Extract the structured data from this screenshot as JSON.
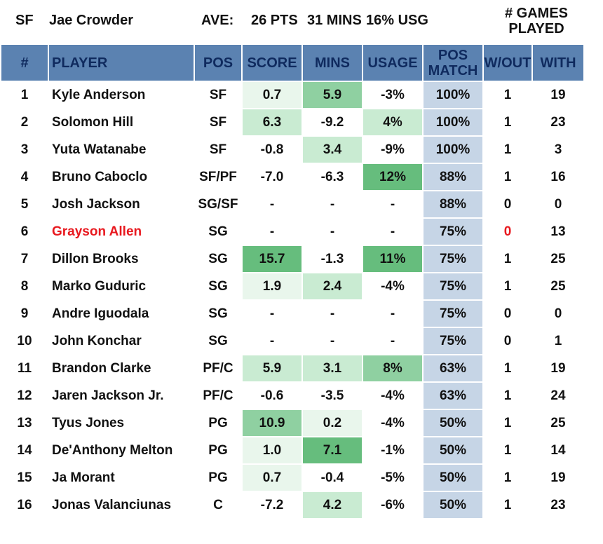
{
  "header": {
    "position": "SF",
    "player": "Jae Crowder",
    "ave_label": "AVE:",
    "pts": "26 PTS",
    "mins": "31 MINS",
    "usg": "16% USG",
    "games_line1": "# GAMES",
    "games_line2": "PLAYED"
  },
  "columns": {
    "num": "#",
    "player": "PLAYER",
    "pos": "POS",
    "score": "SCORE",
    "mins": "MINS",
    "usage": "USAGE",
    "pos_match_line1": "POS",
    "pos_match_line2": "MATCH",
    "without": "W/OUT",
    "with": "WITH"
  },
  "colors": {
    "header_bg": "#5b82b1",
    "header_text": "#0f2a5e",
    "pos_match_bg": "#c6d5e6",
    "highlight_name": "#e8191f",
    "green_scale": [
      "#ffffff",
      "#e9f6ec",
      "#c9ebd2",
      "#8fd0a1",
      "#66bd7d"
    ]
  },
  "rows": [
    {
      "num": "1",
      "player": "Kyle Anderson",
      "pos": "SF",
      "score": "0.7",
      "mins": "5.9",
      "usage": "-3%",
      "match": "100%",
      "without": "1",
      "with": "19",
      "score_level": 1,
      "mins_level": 3,
      "usage_level": 0,
      "highlight": false
    },
    {
      "num": "2",
      "player": "Solomon Hill",
      "pos": "SF",
      "score": "6.3",
      "mins": "-9.2",
      "usage": "4%",
      "match": "100%",
      "without": "1",
      "with": "23",
      "score_level": 2,
      "mins_level": 0,
      "usage_level": 2,
      "highlight": false
    },
    {
      "num": "3",
      "player": "Yuta Watanabe",
      "pos": "SF",
      "score": "-0.8",
      "mins": "3.4",
      "usage": "-9%",
      "match": "100%",
      "without": "1",
      "with": "3",
      "score_level": 0,
      "mins_level": 2,
      "usage_level": 0,
      "highlight": false
    },
    {
      "num": "4",
      "player": "Bruno Caboclo",
      "pos": "SF/PF",
      "score": "-7.0",
      "mins": "-6.3",
      "usage": "12%",
      "match": "88%",
      "without": "1",
      "with": "16",
      "score_level": 0,
      "mins_level": 0,
      "usage_level": 4,
      "highlight": false
    },
    {
      "num": "5",
      "player": "Josh Jackson",
      "pos": "SG/SF",
      "score": "-",
      "mins": "-",
      "usage": "-",
      "match": "88%",
      "without": "0",
      "with": "0",
      "score_level": 0,
      "mins_level": 0,
      "usage_level": 0,
      "highlight": false
    },
    {
      "num": "6",
      "player": "Grayson Allen",
      "pos": "SG",
      "score": "-",
      "mins": "-",
      "usage": "-",
      "match": "75%",
      "without": "0",
      "with": "13",
      "score_level": 0,
      "mins_level": 0,
      "usage_level": 0,
      "highlight": true
    },
    {
      "num": "7",
      "player": "Dillon Brooks",
      "pos": "SG",
      "score": "15.7",
      "mins": "-1.3",
      "usage": "11%",
      "match": "75%",
      "without": "1",
      "with": "25",
      "score_level": 4,
      "mins_level": 0,
      "usage_level": 4,
      "highlight": false
    },
    {
      "num": "8",
      "player": "Marko Guduric",
      "pos": "SG",
      "score": "1.9",
      "mins": "2.4",
      "usage": "-4%",
      "match": "75%",
      "without": "1",
      "with": "25",
      "score_level": 1,
      "mins_level": 2,
      "usage_level": 0,
      "highlight": false
    },
    {
      "num": "9",
      "player": "Andre Iguodala",
      "pos": "SG",
      "score": "-",
      "mins": "-",
      "usage": "-",
      "match": "75%",
      "without": "0",
      "with": "0",
      "score_level": 0,
      "mins_level": 0,
      "usage_level": 0,
      "highlight": false
    },
    {
      "num": "10",
      "player": "John Konchar",
      "pos": "SG",
      "score": "-",
      "mins": "-",
      "usage": "-",
      "match": "75%",
      "without": "0",
      "with": "1",
      "score_level": 0,
      "mins_level": 0,
      "usage_level": 0,
      "highlight": false
    },
    {
      "num": "11",
      "player": "Brandon Clarke",
      "pos": "PF/C",
      "score": "5.9",
      "mins": "3.1",
      "usage": "8%",
      "match": "63%",
      "without": "1",
      "with": "19",
      "score_level": 2,
      "mins_level": 2,
      "usage_level": 3,
      "highlight": false
    },
    {
      "num": "12",
      "player": "Jaren Jackson Jr.",
      "pos": "PF/C",
      "score": "-0.6",
      "mins": "-3.5",
      "usage": "-4%",
      "match": "63%",
      "without": "1",
      "with": "24",
      "score_level": 0,
      "mins_level": 0,
      "usage_level": 0,
      "highlight": false
    },
    {
      "num": "13",
      "player": "Tyus Jones",
      "pos": "PG",
      "score": "10.9",
      "mins": "0.2",
      "usage": "-4%",
      "match": "50%",
      "without": "1",
      "with": "25",
      "score_level": 3,
      "mins_level": 1,
      "usage_level": 0,
      "highlight": false
    },
    {
      "num": "14",
      "player": "De'Anthony Melton",
      "pos": "PG",
      "score": "1.0",
      "mins": "7.1",
      "usage": "-1%",
      "match": "50%",
      "without": "1",
      "with": "14",
      "score_level": 1,
      "mins_level": 4,
      "usage_level": 0,
      "highlight": false
    },
    {
      "num": "15",
      "player": "Ja Morant",
      "pos": "PG",
      "score": "0.7",
      "mins": "-0.4",
      "usage": "-5%",
      "match": "50%",
      "without": "1",
      "with": "19",
      "score_level": 1,
      "mins_level": 0,
      "usage_level": 0,
      "highlight": false
    },
    {
      "num": "16",
      "player": "Jonas Valanciunas",
      "pos": "C",
      "score": "-7.2",
      "mins": "4.2",
      "usage": "-6%",
      "match": "50%",
      "without": "1",
      "with": "23",
      "score_level": 0,
      "mins_level": 2,
      "usage_level": 0,
      "highlight": false
    }
  ]
}
